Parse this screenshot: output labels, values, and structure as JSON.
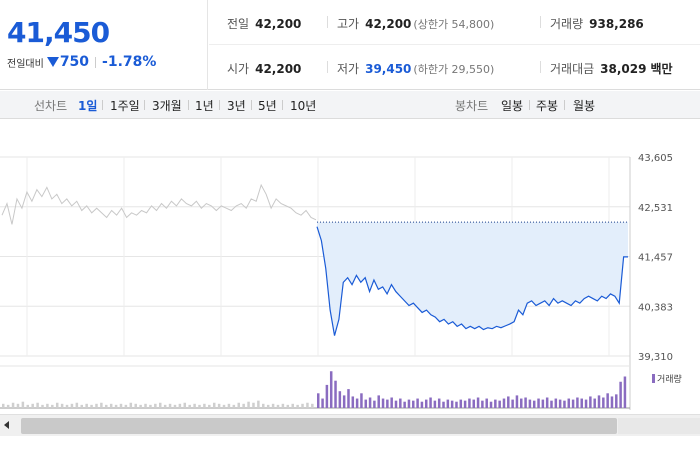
{
  "summary": {
    "price": "41,450",
    "change_label": "전일대비",
    "change_amount": "750",
    "change_percent": "-1.78%",
    "stats_row1": [
      {
        "label": "전일",
        "value": "42,200",
        "sub": ""
      },
      {
        "label": "고가",
        "value": "42,200",
        "sub": "(상한가 54,800)"
      },
      {
        "label": "거래량",
        "value": "938,286",
        "sub": ""
      }
    ],
    "stats_row2": [
      {
        "label": "시가",
        "value": "42,200",
        "sub": ""
      },
      {
        "label": "저가",
        "value": "39,450",
        "sub": "(하한가 29,550)"
      },
      {
        "label": "거래대금",
        "value": "38,029",
        "sub": "백만"
      }
    ]
  },
  "toolbar": {
    "line_chart_label": "선차트",
    "periods": [
      "1일",
      "1주일",
      "3개월",
      "1년",
      "3년",
      "5년",
      "10년"
    ],
    "active_period": "1일",
    "candle_chart_label": "봉차트",
    "candle_periods": [
      "일봉",
      "주봉",
      "월봉"
    ]
  },
  "chart_data": {
    "type": "line",
    "y_ticks": [
      "43,605",
      "42,531",
      "41,457",
      "40,383",
      "39,310"
    ],
    "ylim": [
      39310,
      43605
    ],
    "previous_close": 42200,
    "previous_day_series": [
      42350,
      42600,
      42150,
      42700,
      42500,
      42850,
      42650,
      42900,
      42750,
      42950,
      42700,
      42800,
      42600,
      42700,
      42550,
      42650,
      42450,
      42550,
      42400,
      42500,
      42400,
      42300,
      42450,
      42350,
      42500,
      42300,
      42400,
      42350,
      42450,
      42400,
      42550,
      42450,
      42600,
      42500,
      42650,
      42550,
      42700,
      42600,
      42550,
      42650,
      42500,
      42600,
      42550,
      42450,
      42550,
      42500,
      42450,
      42550,
      42600,
      42500,
      42700,
      42650,
      43000,
      42800,
      42500,
      42700,
      42600,
      42550,
      42500,
      42400,
      42350,
      42450,
      42300,
      42250
    ],
    "today_series": [
      42100,
      41800,
      41200,
      40300,
      39750,
      40100,
      40900,
      41000,
      40850,
      41050,
      40900,
      41000,
      40700,
      40950,
      40750,
      40800,
      40650,
      40850,
      40700,
      40600,
      40500,
      40400,
      40450,
      40350,
      40250,
      40300,
      40200,
      40150,
      40050,
      40100,
      40000,
      40050,
      39950,
      40000,
      39900,
      39950,
      39900,
      39950,
      39880,
      39920,
      39900,
      39950,
      39920,
      39960,
      40000,
      40050,
      40300,
      40200,
      40450,
      40500,
      40400,
      40450,
      40500,
      40400,
      40550,
      40450,
      40500,
      40450,
      40400,
      40500,
      40450,
      40550,
      40600,
      40550,
      40500,
      40600,
      40550,
      40650,
      40600,
      40450,
      41450,
      41450
    ],
    "volume_previous_day": [
      4,
      3,
      5,
      4,
      6,
      3,
      4,
      5,
      3,
      4,
      3,
      5,
      4,
      3,
      4,
      5,
      3,
      4,
      3,
      4,
      5,
      3,
      4,
      3,
      4,
      3,
      5,
      4,
      3,
      4,
      3,
      4,
      5,
      3,
      4,
      3,
      4,
      5,
      3,
      4,
      3,
      4,
      3,
      5,
      4,
      3,
      4,
      3,
      5,
      4,
      6,
      5,
      7,
      4,
      3,
      4,
      3,
      4,
      3,
      4,
      3,
      4,
      5,
      4
    ],
    "volume_today": [
      14,
      9,
      22,
      35,
      26,
      16,
      12,
      18,
      11,
      9,
      14,
      8,
      10,
      7,
      12,
      9,
      8,
      10,
      7,
      9,
      6,
      8,
      7,
      9,
      6,
      8,
      10,
      7,
      9,
      6,
      8,
      7,
      6,
      8,
      7,
      9,
      8,
      10,
      7,
      9,
      6,
      8,
      7,
      9,
      11,
      8,
      12,
      9,
      10,
      8,
      7,
      9,
      8,
      10,
      7,
      9,
      8,
      7,
      9,
      8,
      10,
      9,
      8,
      11,
      9,
      12,
      10,
      14,
      11,
      13,
      25,
      30
    ],
    "volume_label": "거래량",
    "grid": true
  }
}
